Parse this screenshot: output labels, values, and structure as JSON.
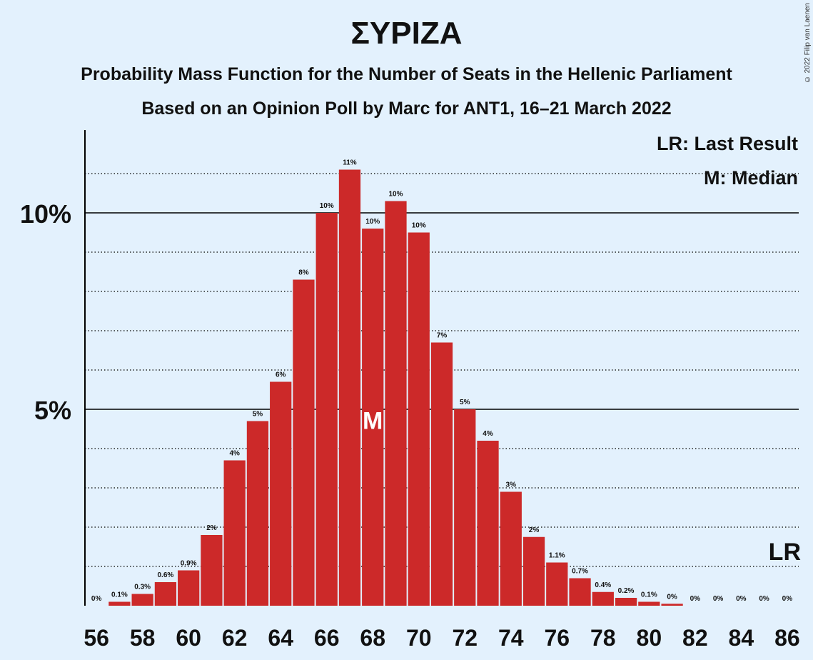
{
  "title": "ΣΥΡΙΖΑ",
  "subtitle1": "Probability Mass Function for the Number of Seats in the Hellenic Parliament",
  "subtitle2": "Based on an Opinion Poll by Marc for ANT1, 16–21 March 2022",
  "copyright": "© 2022 Filip van Laenen",
  "legend": {
    "last_result": "LR: Last Result",
    "median": "M: Median"
  },
  "markers": {
    "median_label": "M",
    "last_result_label": "LR"
  },
  "colors": {
    "background": "#e3f1fd",
    "bar": "#cc2929",
    "text": "#111111"
  },
  "chart_data": {
    "type": "bar",
    "x": [
      56,
      57,
      58,
      59,
      60,
      61,
      62,
      63,
      64,
      65,
      66,
      67,
      68,
      69,
      70,
      71,
      72,
      73,
      74,
      75,
      76,
      77,
      78,
      79,
      80,
      81,
      82,
      83,
      84,
      85,
      86
    ],
    "values": [
      0,
      0.1,
      0.3,
      0.6,
      0.9,
      1.8,
      3.7,
      4.7,
      5.7,
      8.3,
      10.0,
      11.1,
      9.6,
      10.3,
      9.5,
      6.7,
      5.0,
      4.2,
      2.9,
      1.75,
      1.1,
      0.7,
      0.35,
      0.2,
      0.1,
      0.05,
      0,
      0,
      0,
      0,
      0
    ],
    "labels": [
      "0%",
      "0.1%",
      "0.3%",
      "0.6%",
      "0.9%",
      "2%",
      "4%",
      "5%",
      "6%",
      "8%",
      "10%",
      "11%",
      "10%",
      "10%",
      "10%",
      "7%",
      "5%",
      "4%",
      "3%",
      "2%",
      "1.1%",
      "0.7%",
      "0.4%",
      "0.2%",
      "0.1%",
      "0%",
      "0%",
      "0%",
      "0%",
      "0%",
      "0%"
    ],
    "xticks": [
      56,
      58,
      60,
      62,
      64,
      66,
      68,
      70,
      72,
      74,
      76,
      78,
      80,
      82,
      84,
      86
    ],
    "yticks": [
      {
        "value": 5,
        "label": "5%"
      },
      {
        "value": 10,
        "label": "10%"
      }
    ],
    "ylim": [
      0,
      12
    ],
    "median": 68,
    "last_result": 86,
    "grid": "dotted every 1%, solid at 5% and 10%",
    "legend_position": "top-right"
  }
}
